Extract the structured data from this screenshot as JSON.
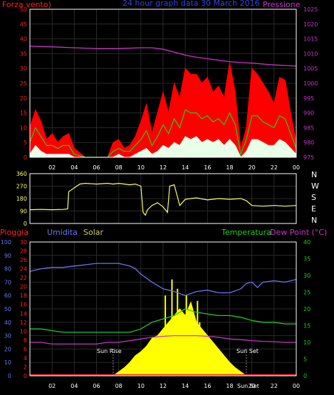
{
  "colors": {
    "background": "#000000",
    "frame": "#ffffff",
    "grid": "#2a2a2a",
    "wind_left_axis": "#ff2020",
    "pressure": "#cc33cc",
    "wind_max": "#ff0000",
    "wind_avg": "#22cc22",
    "wind_min": "#e8ffe8",
    "direction_line": "#ffff66",
    "direction_tick_text": "#ffff66",
    "compass": "#ffffff",
    "rain": "#ff2020",
    "humidity": "#6677ee",
    "solar": "#ffff00",
    "temperature": "#22cc22",
    "dewpoint": "#cc33cc",
    "sun_text": "#ffffff"
  },
  "top_chart": {
    "title": "24 hour graph data 30 March 2016",
    "left_label": "Forza vento)",
    "right_label": "Pressione",
    "left_ticks": [
      "50",
      "45",
      "40",
      "35",
      "30",
      "25",
      "20",
      "15",
      "10",
      "5",
      "0"
    ],
    "right_ticks": [
      "1025",
      "1020",
      "1015",
      "1010",
      "1005",
      "1000",
      "995",
      "990",
      "985",
      "980",
      "975"
    ],
    "x_ticks": [
      "02",
      "04",
      "06",
      "08",
      "10",
      "12",
      "14",
      "16",
      "18",
      "20",
      "22",
      "00"
    ]
  },
  "mid_chart": {
    "left_ticks": [
      "360",
      "270",
      "180",
      "90",
      "0"
    ],
    "compass": [
      "N",
      "W",
      "S",
      "E",
      "N"
    ],
    "x_ticks": [
      "02",
      "04",
      "06",
      "08",
      "10",
      "12",
      "14",
      "16",
      "18",
      "20",
      "22",
      "00"
    ]
  },
  "bottom_chart": {
    "header_rain": "Pioggia",
    "header_humidity": "Umidita",
    "header_solar": "Solar",
    "header_temperature": "Temperatura",
    "header_dewpoint": "Dew Point (°C)",
    "humidity_ticks": [
      "100",
      "90",
      "80",
      "70",
      "60",
      "50",
      "40",
      "30",
      "20",
      "10",
      "0"
    ],
    "rain_ticks": [
      "30",
      "28",
      "26",
      "24",
      "22",
      "20",
      "18",
      "16",
      "14",
      "12",
      "10",
      "8",
      "6",
      "4",
      "2",
      "0"
    ],
    "temp_ticks": [
      "40",
      "35",
      "30",
      "25",
      "20",
      "15",
      "10",
      "5",
      "0"
    ],
    "x_ticks": [
      "02",
      "04",
      "06",
      "08",
      "10",
      "12",
      "14",
      "16",
      "18",
      "20",
      "22",
      "00"
    ],
    "sunrise_label": "Sun Rise",
    "sunset_label": "Sun Set",
    "sunset_bottom_label": "Sun Set"
  },
  "chart_data": [
    {
      "type": "line",
      "title": "24 hour graph data 30 March 2016",
      "x_unit": "hour",
      "xlim": [
        0,
        24
      ],
      "ylim_left": [
        0,
        50
      ],
      "ylim_right": [
        975,
        1025
      ],
      "series": [
        {
          "name": "Forza vento",
          "axis": "left",
          "role": "max",
          "x": [
            0,
            0.5,
            1,
            1.5,
            2,
            2.5,
            3,
            3.5,
            4,
            5,
            6,
            7,
            7.5,
            8,
            8.5,
            9,
            9.5,
            10,
            10.5,
            11,
            11.5,
            12,
            12.5,
            13,
            13.5,
            14,
            14.5,
            15,
            15.5,
            16,
            16.5,
            17,
            17.5,
            18,
            18.5,
            19,
            19.5,
            20,
            20.5,
            21,
            21.5,
            22,
            22.5,
            23,
            23.5,
            24
          ],
          "y": [
            10,
            16,
            12,
            6,
            8,
            5,
            7,
            8,
            3,
            0,
            0,
            0,
            5,
            6,
            3,
            4,
            7,
            12,
            18,
            8,
            15,
            22,
            15,
            25,
            20,
            30,
            28,
            28,
            25,
            27,
            22,
            24,
            20,
            32,
            22,
            3,
            10,
            30,
            28,
            25,
            22,
            18,
            27,
            26,
            15,
            5
          ]
        },
        {
          "name": "Forza vento",
          "axis": "left",
          "role": "avg",
          "x": [
            0,
            0.5,
            1,
            1.5,
            2,
            2.5,
            3,
            3.5,
            4,
            5,
            6,
            7,
            7.5,
            8,
            8.5,
            9,
            9.5,
            10,
            10.5,
            11,
            11.5,
            12,
            12.5,
            13,
            13.5,
            14,
            14.5,
            15,
            15.5,
            16,
            16.5,
            17,
            17.5,
            18,
            18.5,
            19,
            19.5,
            20,
            20.5,
            21,
            21.5,
            22,
            22.5,
            23,
            23.5,
            24
          ],
          "y": [
            5,
            10,
            7,
            4,
            4,
            3,
            4,
            4,
            1,
            0,
            0,
            0,
            2,
            3,
            2,
            2,
            4,
            6,
            9,
            4,
            7,
            11,
            8,
            13,
            10,
            16,
            15,
            15,
            13,
            14,
            12,
            13,
            11,
            15,
            11,
            1,
            6,
            14,
            14,
            12,
            11,
            10,
            14,
            13,
            8,
            3
          ]
        },
        {
          "name": "Forza vento",
          "axis": "left",
          "role": "min",
          "x": [
            0,
            0.5,
            1,
            1.5,
            2,
            2.5,
            3,
            3.5,
            4,
            5,
            6,
            7,
            7.5,
            8,
            8.5,
            9,
            9.5,
            10,
            10.5,
            11,
            11.5,
            12,
            12.5,
            13,
            13.5,
            14,
            14.5,
            15,
            15.5,
            16,
            16.5,
            17,
            17.5,
            18,
            18.5,
            19,
            19.5,
            20,
            20.5,
            21,
            21.5,
            22,
            22.5,
            23,
            23.5,
            24
          ],
          "y": [
            1,
            4,
            2,
            1,
            1,
            1,
            1,
            1,
            0,
            0,
            0,
            0,
            0,
            1,
            0,
            0,
            1,
            2,
            3,
            1,
            2,
            4,
            3,
            5,
            4,
            7,
            6,
            7,
            5,
            6,
            5,
            6,
            4,
            6,
            4,
            0,
            2,
            6,
            6,
            5,
            4,
            4,
            6,
            5,
            3,
            1
          ]
        },
        {
          "name": "Pressione",
          "axis": "right",
          "x": [
            0,
            2,
            4,
            6,
            8,
            10,
            11,
            12,
            13,
            14,
            15,
            16,
            17,
            18,
            19,
            20,
            21,
            22,
            23,
            24
          ],
          "y": [
            1012.5,
            1012.3,
            1012,
            1011.7,
            1011.7,
            1012,
            1012,
            1011.5,
            1010.5,
            1009.5,
            1008.8,
            1008.3,
            1007.8,
            1007.3,
            1007,
            1006.8,
            1006.5,
            1006.2,
            1006,
            1005.8
          ]
        }
      ]
    },
    {
      "type": "line",
      "x_unit": "hour",
      "xlim": [
        0,
        24
      ],
      "ylim": [
        0,
        360
      ],
      "series": [
        {
          "x": [
            0,
            1,
            2,
            3,
            3.4,
            3.5,
            4.5,
            5,
            6,
            7,
            7.5,
            8,
            8.5,
            9,
            9.5,
            10,
            10.2,
            10.4,
            10.6,
            11,
            11.5,
            12,
            12.4,
            12.6,
            13,
            13.5,
            14,
            15,
            16,
            17,
            18,
            19,
            19.5,
            20,
            21,
            22,
            23,
            24
          ],
          "y": [
            100,
            102,
            100,
            102,
            105,
            230,
            285,
            290,
            285,
            290,
            285,
            290,
            285,
            280,
            285,
            270,
            80,
            60,
            100,
            130,
            150,
            120,
            80,
            270,
            280,
            130,
            175,
            185,
            170,
            180,
            175,
            180,
            165,
            130,
            125,
            130,
            125,
            130
          ]
        }
      ]
    },
    {
      "type": "line",
      "x_unit": "hour",
      "xlim": [
        0,
        24
      ],
      "ylim_humidity": [
        0,
        100
      ],
      "ylim_rain": [
        0,
        30
      ],
      "ylim_temperature": [
        0,
        40
      ],
      "series": [
        {
          "name": "Umidita",
          "axis": "humidity",
          "x": [
            0,
            1,
            2,
            3,
            4,
            5,
            6,
            7,
            8,
            9,
            9.5,
            10,
            11,
            12,
            13,
            14,
            15,
            16,
            17,
            18,
            19,
            19.5,
            20,
            20.5,
            21,
            22,
            23,
            24
          ],
          "y": [
            78,
            80,
            81,
            81,
            82,
            83,
            84,
            84,
            84,
            82,
            80,
            76,
            70,
            65,
            63,
            60,
            63,
            64,
            62,
            62,
            65,
            69,
            70,
            66,
            70,
            71,
            70,
            72
          ]
        },
        {
          "name": "Temperatura",
          "axis": "temperature",
          "x": [
            0,
            1,
            2,
            3,
            4,
            5,
            6,
            7,
            8,
            9,
            10,
            11,
            12,
            13,
            14,
            15,
            16,
            17,
            18,
            19,
            20,
            21,
            22,
            23,
            24
          ],
          "y": [
            14,
            14,
            13.5,
            13,
            13,
            13,
            13,
            13,
            13,
            13,
            14,
            16,
            17,
            18,
            20,
            19,
            18.5,
            18,
            18,
            17.5,
            16.5,
            16,
            16,
            15.5,
            15.5
          ]
        },
        {
          "name": "Dew Point",
          "axis": "temperature",
          "x": [
            0,
            1,
            2,
            3,
            4,
            5,
            6,
            7,
            8,
            9,
            10,
            11,
            12,
            13,
            14,
            15,
            16,
            17,
            18,
            19,
            20,
            21,
            22,
            23,
            24
          ],
          "y": [
            10,
            10,
            9.5,
            9.5,
            9.5,
            9.5,
            9.5,
            10,
            10,
            10.5,
            11,
            11.5,
            11.8,
            12,
            12,
            12,
            11.8,
            11.5,
            11,
            10.8,
            10.5,
            10.3,
            10.2,
            10,
            10
          ]
        },
        {
          "name": "Pioggia",
          "axis": "rain",
          "x": [
            0,
            24
          ],
          "y": [
            0.2,
            0.2
          ]
        },
        {
          "name": "Solar",
          "axis": "humidity",
          "x": [
            7.5,
            8,
            8.5,
            9,
            9.5,
            10,
            10.5,
            11,
            11.5,
            12,
            12.5,
            13,
            13.5,
            14,
            14.5,
            15,
            15.5,
            16,
            16.5,
            17,
            17.5,
            18,
            18.5,
            19,
            19.5
          ],
          "y": [
            0,
            3,
            6,
            10,
            15,
            18,
            22,
            28,
            30,
            35,
            40,
            45,
            50,
            45,
            55,
            40,
            35,
            30,
            25,
            20,
            15,
            10,
            6,
            3,
            0
          ]
        },
        {
          "name": "Solar peaks",
          "axis": "humidity",
          "x": [
            12.2,
            12.4,
            12.8,
            13.1,
            13.3,
            13.6,
            14.1,
            14.5,
            15.1,
            15.3
          ],
          "y": [
            60,
            35,
            72,
            40,
            65,
            45,
            60,
            50,
            56,
            40
          ]
        }
      ],
      "sunrise_hour": 7.5,
      "sunset_hour": 19.5
    }
  ]
}
